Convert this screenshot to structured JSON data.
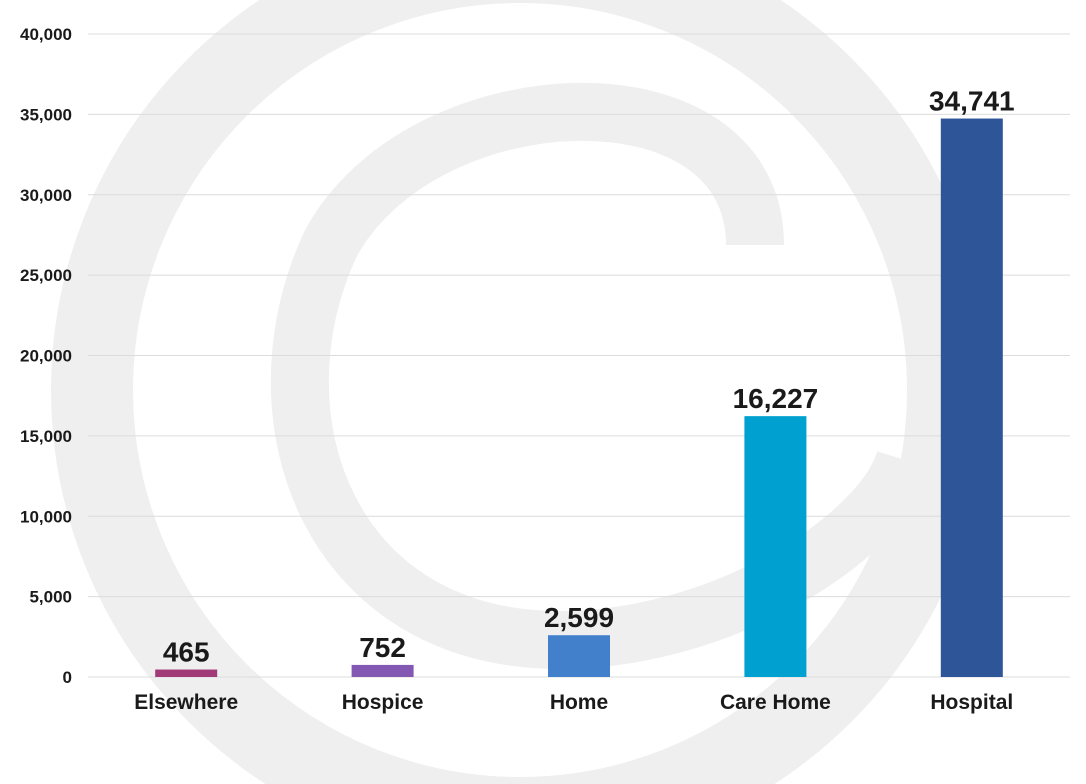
{
  "chart_data": {
    "type": "bar",
    "title": "",
    "xlabel": "",
    "ylabel": "",
    "categories": [
      "Elsewhere",
      "Hospice",
      "Home",
      "Care Home",
      "Hospital"
    ],
    "values": [
      465,
      752,
      2599,
      16227,
      34741
    ],
    "value_labels": [
      "465",
      "752",
      "2,599",
      "16,227",
      "34,741"
    ],
    "colors": [
      "#a13b78",
      "#8358b3",
      "#4380cb",
      "#00a0d1",
      "#2e5597"
    ],
    "ylim": [
      0,
      40000
    ],
    "yticks": [
      0,
      5000,
      10000,
      15000,
      20000,
      25000,
      30000,
      35000,
      40000
    ],
    "ytick_labels": [
      "0",
      "5,000",
      "10,000",
      "15,000",
      "20,000",
      "25,000",
      "30,000",
      "35,000",
      "40,000"
    ],
    "grid": true,
    "legend": "none"
  }
}
